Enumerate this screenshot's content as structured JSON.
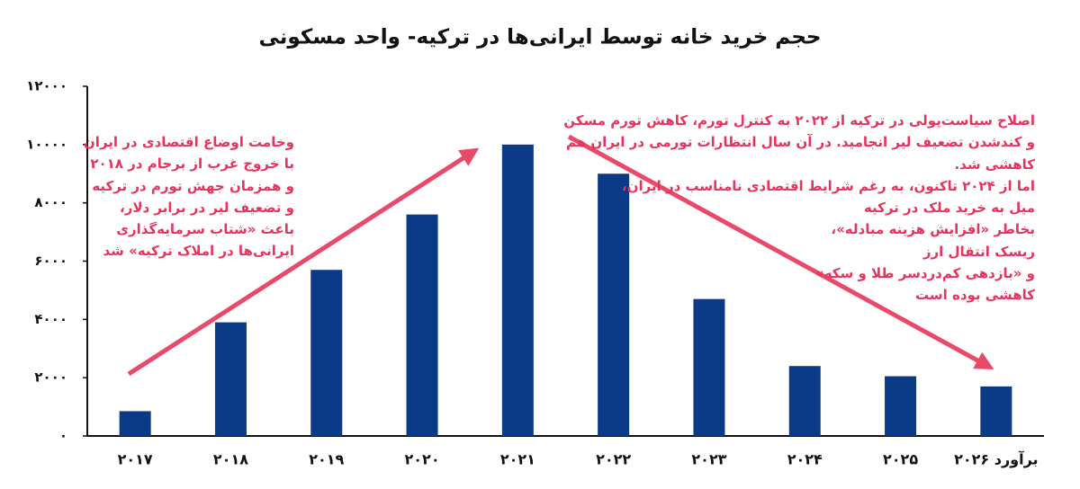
{
  "chart_data": {
    "type": "bar",
    "title": "حجم خرید خانه توسط ایرانی‌ها در ترکیه- واحد مسکونی",
    "categories": [
      "۲۰۱۷",
      "۲۰۱۸",
      "۲۰۱۹",
      "۲۰۲۰",
      "۲۰۲۱",
      "۲۰۲۲",
      "۲۰۲۳",
      "۲۰۲۴",
      "۲۰۲۵",
      "برآورد ۲۰۲۶"
    ],
    "values": [
      850,
      3900,
      5700,
      7600,
      10000,
      9000,
      4700,
      2400,
      2050,
      1700
    ],
    "color": "#0b3a86",
    "ylim": [
      0,
      12000
    ],
    "yticks": [
      {
        "value": 0,
        "label": "۰"
      },
      {
        "value": 2000,
        "label": "۲۰۰۰"
      },
      {
        "value": 4000,
        "label": "۴۰۰۰"
      },
      {
        "value": 6000,
        "label": "۶۰۰۰"
      },
      {
        "value": 8000,
        "label": "۸۰۰۰"
      },
      {
        "value": 10000,
        "label": "۱۰۰۰۰"
      },
      {
        "value": 12000,
        "label": "۱۲۰۰۰"
      }
    ],
    "grid": false,
    "annotations": [
      {
        "lines": [
          "وخامت اوضاع اقتصادی در ایران",
          "با خروج غرب از برجام در ۲۰۱۸",
          "و همزمان جهش تورم در ترکیه",
          "و تضعیف لیر در برابر دلار،",
          "باعث «شتاب سرمایه‌گذاری",
          "ایرانی‌ها در املاک ترکیه» شد"
        ]
      },
      {
        "lines": [
          "اصلاح سیاست‌پولی در ترکیه از ۲۰۲۲ به کنترل تورم، کاهش تورم مسکن",
          "و کندشدن تضعیف لیر انجامید. در آن سال انتظارات تورمی در ایران هم",
          "کاهشی شد.",
          "اما از ۲۰۲۴ تاکنون، به رغم شرایط اقتصادی نامناسب در ایران،",
          "میل به خرید ملک در ترکیه",
          "بخاطر «افزایش هزینه مبادله»،",
          "ریسک انتقال ارز",
          "و «بازدهی  کم‌دردسر طلا و سکه»",
          "کاهشی بوده است"
        ]
      }
    ]
  }
}
